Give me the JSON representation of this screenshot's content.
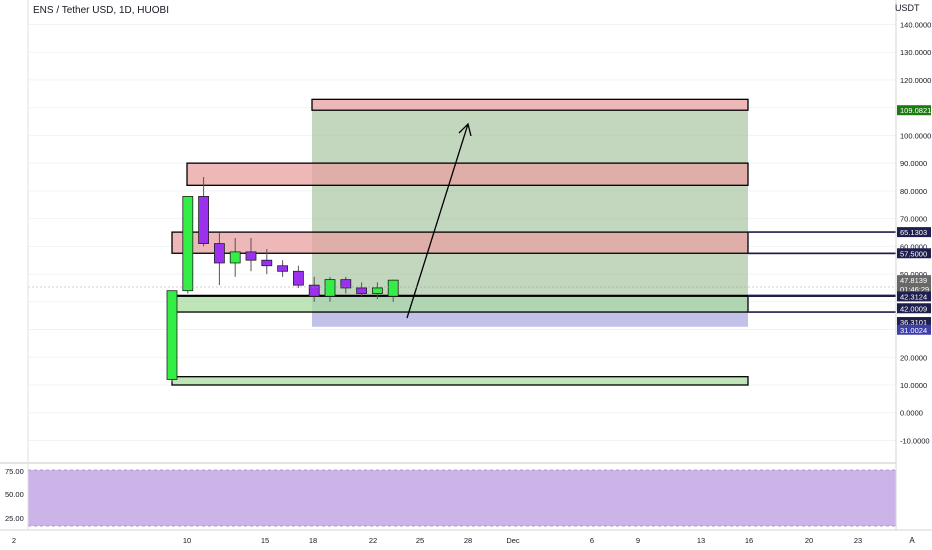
{
  "header": {
    "symbol_title": "ENS / Tether USD, 1D, HUOBI",
    "currency": "USDT"
  },
  "price_axis": {
    "ticks": [
      "140.0000",
      "130.0000",
      "120.0000",
      "100.0000",
      "90.0000",
      "80.0000",
      "70.0000",
      "60.0000",
      "50.0000",
      "20.0000",
      "10.0000",
      "0.0000",
      "-10.0000"
    ],
    "badges": [
      {
        "name": "price-badge-target",
        "text": "109.0821",
        "color": "#1b7a12"
      },
      {
        "name": "price-badge-65",
        "text": "65.1303",
        "color": "#1f1f4d"
      },
      {
        "name": "price-badge-57",
        "text": "57.5000",
        "color": "#1f1f4d"
      },
      {
        "name": "price-badge-current",
        "text": "47.8139",
        "color": "#686868"
      },
      {
        "name": "price-badge-countdown",
        "text": "01:46:29",
        "color": "#686868"
      },
      {
        "name": "price-badge-42-3",
        "text": "42.3124",
        "color": "#1f1f4d"
      },
      {
        "name": "price-badge-42-0",
        "text": "42.0009",
        "color": "#1f1f4d"
      },
      {
        "name": "price-badge-36",
        "text": "36.3101",
        "color": "#1f1f4d"
      },
      {
        "name": "price-badge-stop",
        "text": "31.0024",
        "color": "#3d3fa8"
      }
    ]
  },
  "indicator_axis": {
    "ticks": [
      "75.00",
      "50.00",
      "25.00"
    ]
  },
  "time_axis": {
    "ticks": [
      "2",
      "10",
      "15",
      "18",
      "22",
      "25",
      "28",
      "Dec",
      "6",
      "9",
      "13",
      "16",
      "20",
      "23"
    ],
    "corner": "A"
  },
  "colors": {
    "bull": "#33ee44",
    "bear": "#9b30ee",
    "profit_zone": "#9bbd92",
    "loss_zone": "#9a97d8",
    "supply_zone": "#e8a0a0",
    "demand_zone": "#a8dba0",
    "indicator_band": "#cdb4e8"
  },
  "chart_data": {
    "type": "candlestick",
    "symbol": "ENS / Tether USD",
    "interval": "1D",
    "exchange": "HUOBI",
    "y_scale": "linear",
    "candles": [
      {
        "date": "Nov 9",
        "open": 12,
        "high": 44,
        "low": 11,
        "close": 44,
        "color": "bull"
      },
      {
        "date": "Nov 10",
        "open": 44,
        "high": 78,
        "low": 43,
        "close": 78,
        "color": "bull"
      },
      {
        "date": "Nov 11",
        "open": 78,
        "high": 85,
        "low": 60,
        "close": 61,
        "color": "bear"
      },
      {
        "date": "Nov 12",
        "open": 61,
        "high": 65,
        "low": 46,
        "close": 54,
        "color": "bear"
      },
      {
        "date": "Nov 13",
        "open": 54,
        "high": 63,
        "low": 49,
        "close": 58,
        "color": "bull"
      },
      {
        "date": "Nov 14",
        "open": 58,
        "high": 63,
        "low": 51,
        "close": 55,
        "color": "bear"
      },
      {
        "date": "Nov 15",
        "open": 55,
        "high": 59,
        "low": 50,
        "close": 53,
        "color": "bear"
      },
      {
        "date": "Nov 16",
        "open": 53,
        "high": 55,
        "low": 49,
        "close": 51,
        "color": "bear"
      },
      {
        "date": "Nov 17",
        "open": 51,
        "high": 53,
        "low": 45,
        "close": 46,
        "color": "bear"
      },
      {
        "date": "Nov 18",
        "open": 46,
        "high": 49,
        "low": 40,
        "close": 42,
        "color": "bear"
      },
      {
        "date": "Nov 19",
        "open": 42,
        "high": 49,
        "low": 40,
        "close": 48,
        "color": "bull"
      },
      {
        "date": "Nov 20",
        "open": 48,
        "high": 49,
        "low": 43,
        "close": 45,
        "color": "bear"
      },
      {
        "date": "Nov 21",
        "open": 45,
        "high": 47,
        "low": 42,
        "close": 43,
        "color": "bear"
      },
      {
        "date": "Nov 22",
        "open": 43,
        "high": 47,
        "low": 41,
        "close": 45,
        "color": "bull"
      },
      {
        "date": "Nov 23",
        "open": 42,
        "high": 48,
        "low": 40,
        "close": 47.8,
        "color": "bull"
      }
    ],
    "zones": [
      {
        "kind": "supply",
        "from": 82,
        "to": 90
      },
      {
        "kind": "supply",
        "from": 57.5,
        "to": 65.13
      },
      {
        "kind": "demand",
        "from": 42,
        "to": 42.31
      },
      {
        "kind": "demand",
        "from": 36.31,
        "to": 42
      },
      {
        "kind": "demand",
        "from": 10,
        "to": 13
      },
      {
        "kind": "target",
        "from": 109.08,
        "to": 113
      }
    ],
    "position": {
      "entry": 42.3124,
      "target": 109.0821,
      "stop": 31.0024
    },
    "indicator": {
      "band_upper": 80,
      "band_lower": 20
    }
  }
}
